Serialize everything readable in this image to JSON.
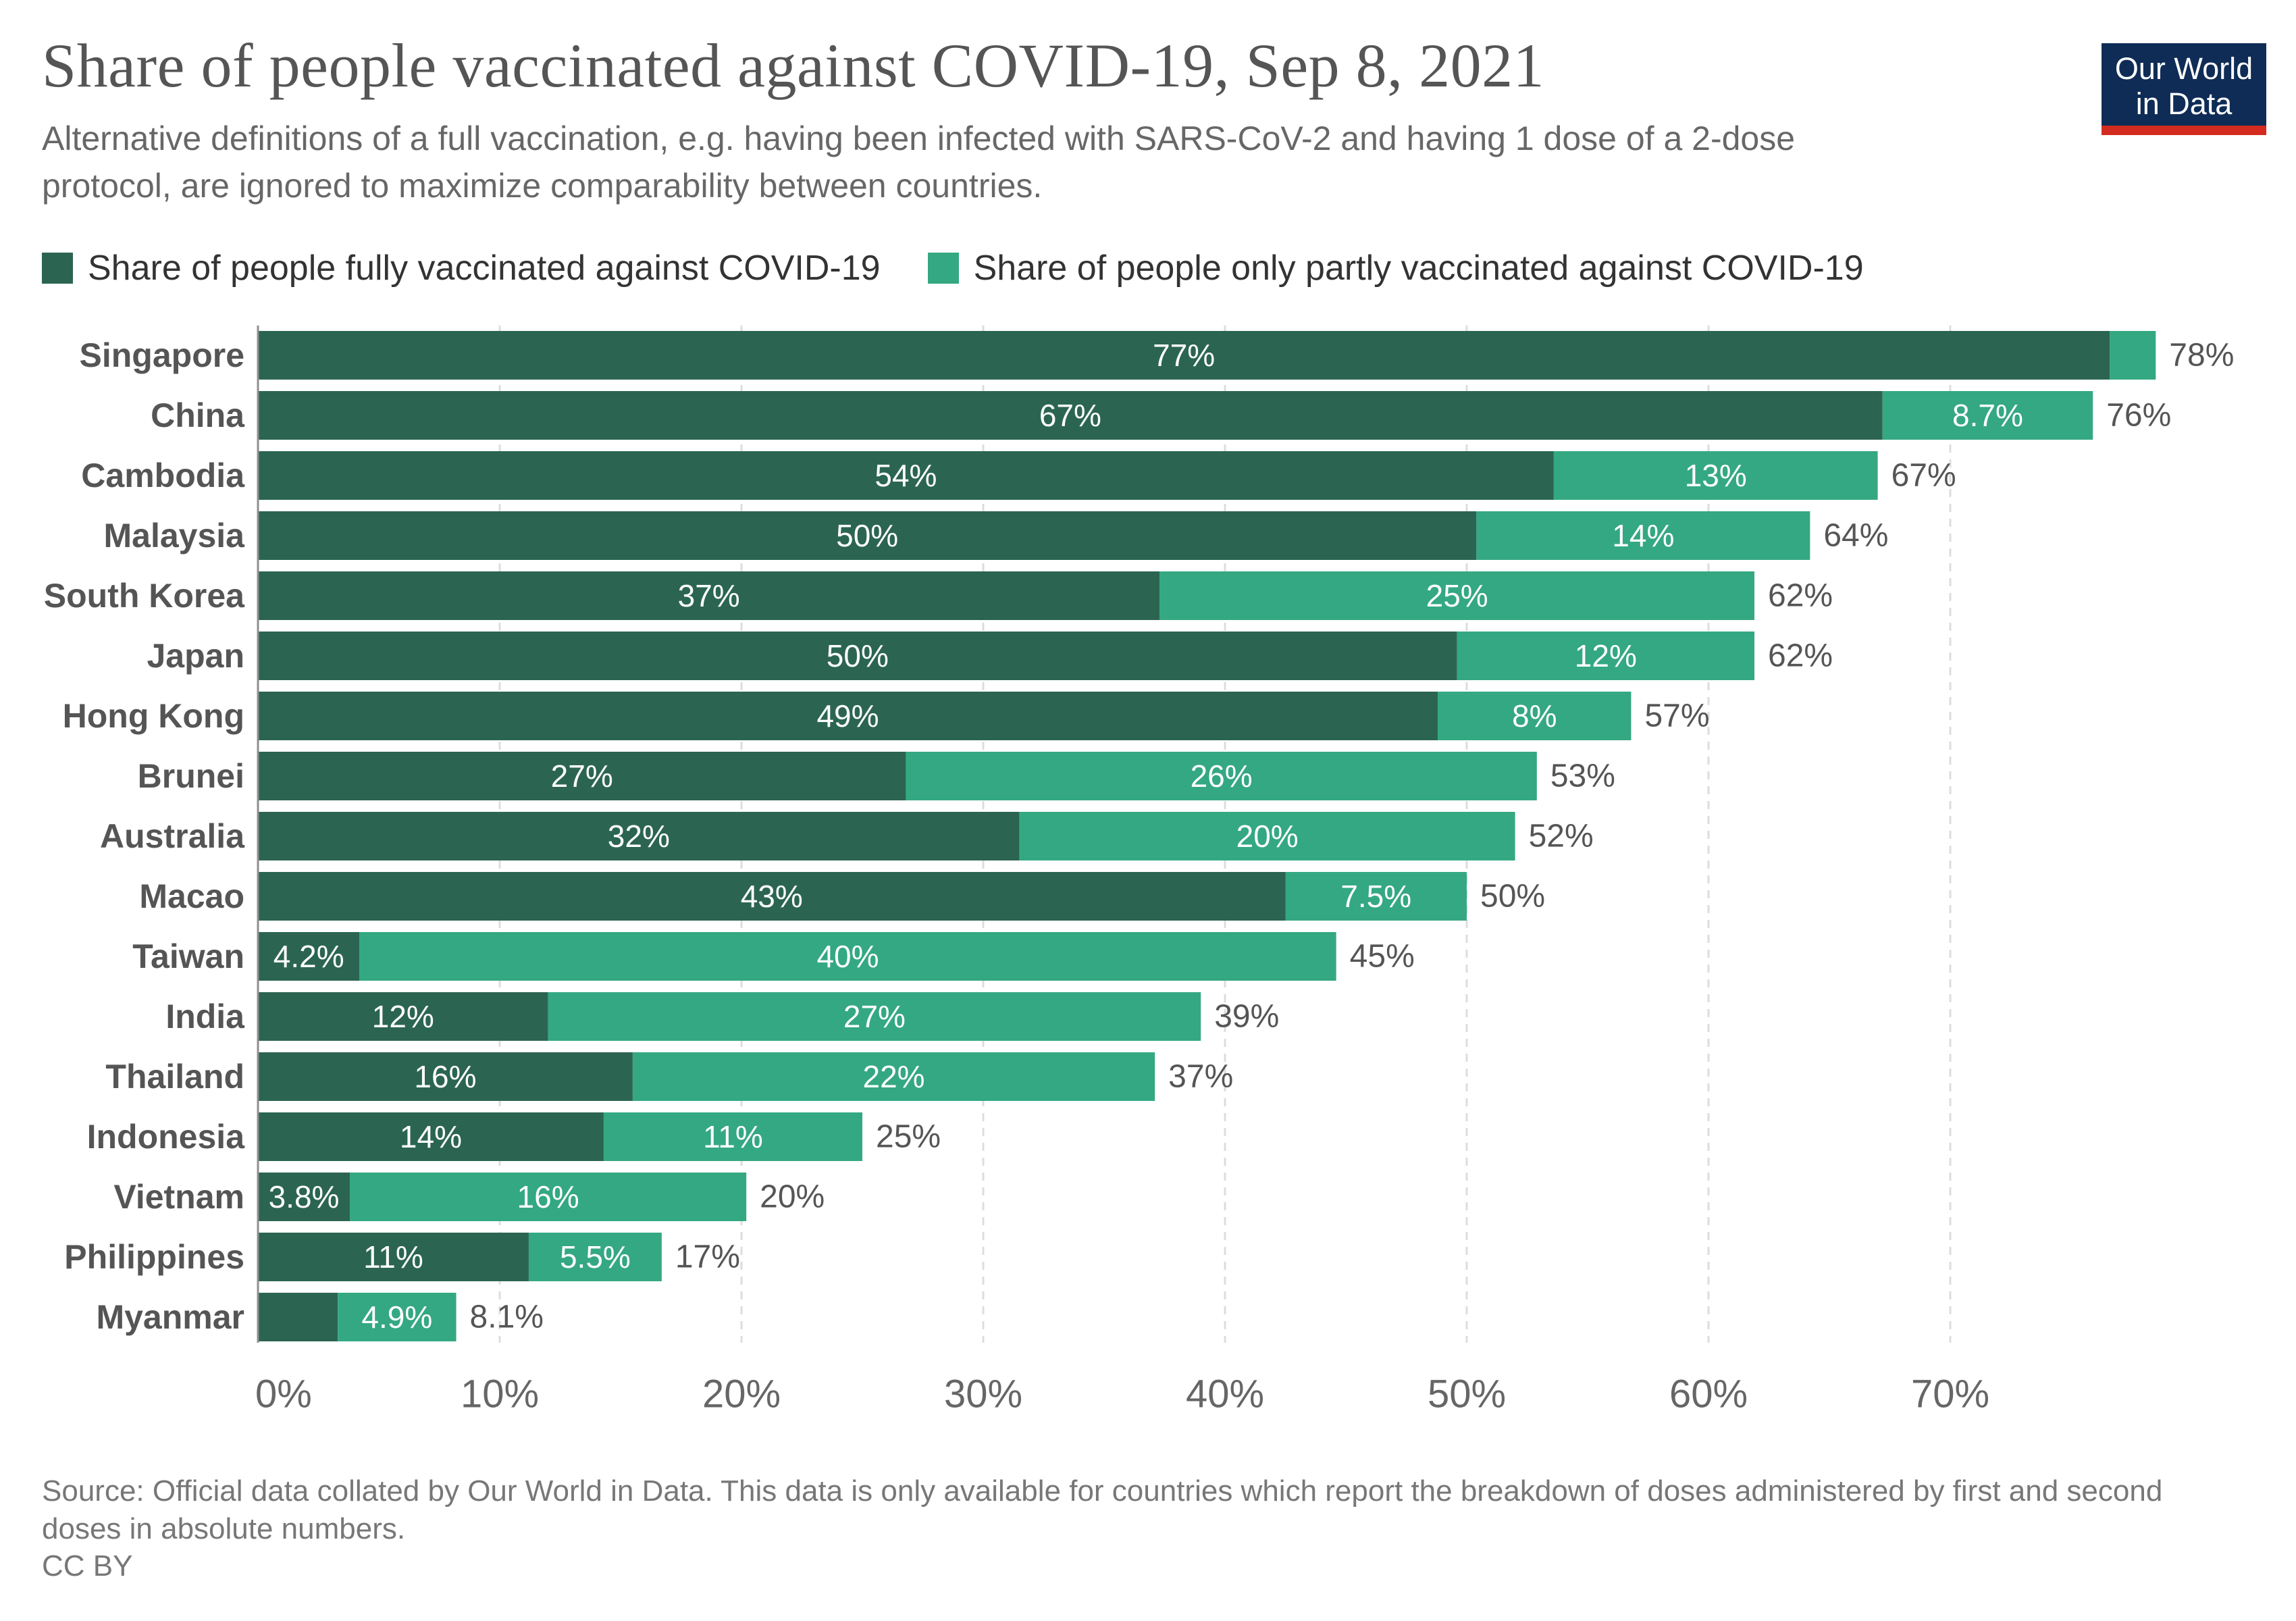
{
  "title": "Share of people vaccinated against COVID-19, Sep 8, 2021",
  "subtitle": "Alternative definitions of a full vaccination, e.g. having been infected with SARS-CoV-2 and having 1 dose of a 2-dose protocol, are ignored to maximize comparability between countries.",
  "logo": {
    "line1": "Our World",
    "line2": "in Data"
  },
  "legend": {
    "fully": "Share of people fully vaccinated against COVID-19",
    "partly": "Share of people only partly vaccinated against COVID-19"
  },
  "colors": {
    "fully": "#2b6551",
    "partly": "#34a882",
    "grid": "#dddddd",
    "logo_bg": "#0f2c56",
    "logo_accent": "#d42b21"
  },
  "source": "Source: Official data collated by Our World in Data. This data is only available for countries which report the breakdown of doses administered by first and second doses in absolute numbers.",
  "license": "CC BY",
  "chart_data": {
    "type": "bar",
    "orientation": "horizontal",
    "stacked": true,
    "title": "Share of people vaccinated against COVID-19, Sep 8, 2021",
    "xlim": [
      0,
      78
    ],
    "xticks": [
      0,
      10,
      20,
      30,
      40,
      50,
      60,
      70
    ],
    "xtick_labels": [
      "0%",
      "10%",
      "20%",
      "30%",
      "40%",
      "50%",
      "60%",
      "70%"
    ],
    "grid": "vertical dashed",
    "legend_position": "top-left",
    "categories": [
      "Singapore",
      "China",
      "Cambodia",
      "Malaysia",
      "South Korea",
      "Japan",
      "Hong Kong",
      "Brunei",
      "Australia",
      "Macao",
      "Taiwan",
      "India",
      "Thailand",
      "Indonesia",
      "Vietnam",
      "Philippines",
      "Myanmar"
    ],
    "series": [
      {
        "name": "Share of people fully vaccinated against COVID-19",
        "values": [
          76.6,
          67.2,
          53.6,
          50.4,
          37.3,
          49.6,
          48.8,
          26.8,
          31.5,
          42.5,
          4.2,
          12.0,
          15.5,
          14.3,
          3.8,
          11.2,
          3.3
        ],
        "labels": [
          "77%",
          "67%",
          "54%",
          "50%",
          "37%",
          "50%",
          "49%",
          "27%",
          "32%",
          "43%",
          "4.2%",
          "12%",
          "16%",
          "14%",
          "3.8%",
          "11%",
          ""
        ]
      },
      {
        "name": "Share of people only partly vaccinated against COVID-19",
        "values": [
          1.9,
          8.7,
          13.4,
          13.8,
          24.6,
          12.3,
          8.0,
          26.1,
          20.5,
          7.5,
          40.4,
          27.0,
          21.6,
          10.7,
          16.4,
          5.5,
          4.9
        ],
        "labels": [
          "",
          "8.7%",
          "13%",
          "14%",
          "25%",
          "12%",
          "8%",
          "26%",
          "20%",
          "7.5%",
          "40%",
          "27%",
          "22%",
          "11%",
          "16%",
          "5.5%",
          "4.9%"
        ]
      }
    ],
    "totals": [
      "78%",
      "76%",
      "67%",
      "64%",
      "62%",
      "62%",
      "57%",
      "53%",
      "52%",
      "50%",
      "45%",
      "39%",
      "37%",
      "25%",
      "20%",
      "17%",
      "8.1%"
    ]
  }
}
